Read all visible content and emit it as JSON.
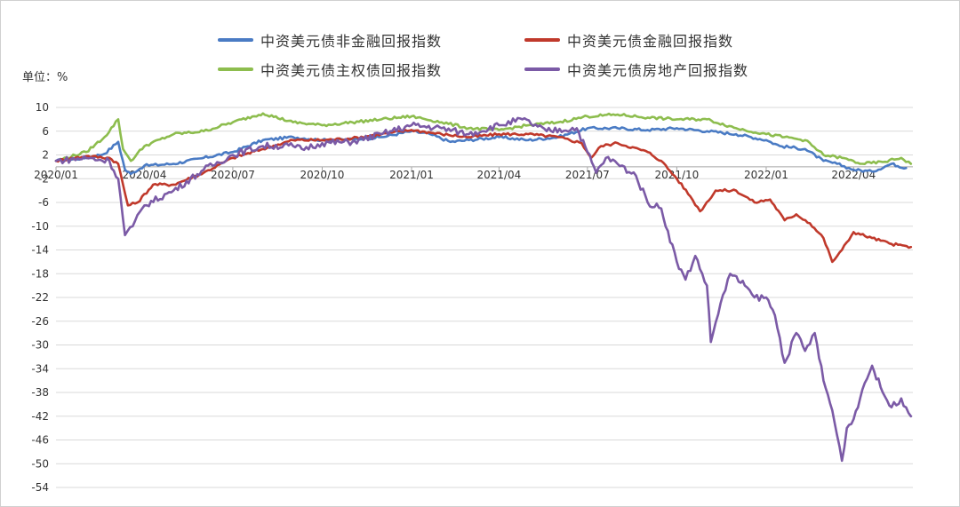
{
  "unit_label": "单位：%",
  "colors": {
    "non_financial": "#4a7bc4",
    "financial": "#c0392b",
    "sovereign": "#8dbd4e",
    "real_estate": "#7b5aa6",
    "grid": "#d9d9d9"
  },
  "chart_data": {
    "type": "line",
    "title": "",
    "xlabel": "",
    "ylabel": "单位：%",
    "ylim": [
      -54,
      10
    ],
    "yticks": [
      10,
      6,
      2,
      -2,
      -6,
      -10,
      -14,
      -18,
      -22,
      -26,
      -30,
      -34,
      -38,
      -42,
      -46,
      -50,
      -54
    ],
    "xlim": [
      "2020-01-01",
      "2022-06-01"
    ],
    "xticks": [
      "2020/01",
      "2020/04",
      "2020/07",
      "2020/10",
      "2021/01",
      "2021/04",
      "2021/07",
      "2021/10",
      "2022/01",
      "2022/04"
    ],
    "grid": true,
    "legend_position": "top",
    "series": [
      {
        "name": "中资美元债非金融回报指数",
        "color_key": "non_financial",
        "points": [
          [
            "2020-01-01",
            1.0
          ],
          [
            "2020-02-01",
            1.5
          ],
          [
            "2020-02-20",
            2.2
          ],
          [
            "2020-03-05",
            4.2
          ],
          [
            "2020-03-12",
            -0.5
          ],
          [
            "2020-03-18",
            -1.2
          ],
          [
            "2020-04-01",
            0.2
          ],
          [
            "2020-05-01",
            0.5
          ],
          [
            "2020-06-01",
            1.5
          ],
          [
            "2020-07-01",
            2.5
          ],
          [
            "2020-08-01",
            4.5
          ],
          [
            "2020-09-01",
            5.0
          ],
          [
            "2020-10-01",
            4.5
          ],
          [
            "2020-11-01",
            4.6
          ],
          [
            "2020-12-01",
            5.0
          ],
          [
            "2021-01-01",
            6.0
          ],
          [
            "2021-01-20",
            5.5
          ],
          [
            "2021-02-10",
            4.2
          ],
          [
            "2021-03-01",
            4.5
          ],
          [
            "2021-04-01",
            5.0
          ],
          [
            "2021-05-01",
            4.5
          ],
          [
            "2021-06-01",
            5.0
          ],
          [
            "2021-07-01",
            6.5
          ],
          [
            "2021-08-01",
            6.5
          ],
          [
            "2021-09-01",
            6.2
          ],
          [
            "2021-10-01",
            6.5
          ],
          [
            "2021-11-01",
            6.0
          ],
          [
            "2021-12-01",
            5.5
          ],
          [
            "2022-01-01",
            4.5
          ],
          [
            "2022-01-15",
            3.5
          ],
          [
            "2022-02-10",
            3.0
          ],
          [
            "2022-03-01",
            1.0
          ],
          [
            "2022-03-15",
            0.5
          ],
          [
            "2022-04-01",
            -0.5
          ],
          [
            "2022-04-20",
            -0.8
          ],
          [
            "2022-05-10",
            0.5
          ],
          [
            "2022-05-25",
            -0.2
          ]
        ]
      },
      {
        "name": "中资美元债金融回报指数",
        "color_key": "financial",
        "points": [
          [
            "2020-01-01",
            1.0
          ],
          [
            "2020-02-01",
            1.8
          ],
          [
            "2020-02-25",
            1.5
          ],
          [
            "2020-03-05",
            0.5
          ],
          [
            "2020-03-15",
            -6.5
          ],
          [
            "2020-03-25",
            -6.0
          ],
          [
            "2020-04-10",
            -3.0
          ],
          [
            "2020-05-01",
            -3.0
          ],
          [
            "2020-06-01",
            -1.0
          ],
          [
            "2020-07-01",
            1.5
          ],
          [
            "2020-08-01",
            3.0
          ],
          [
            "2020-09-01",
            4.5
          ],
          [
            "2020-10-01",
            4.5
          ],
          [
            "2020-11-01",
            4.8
          ],
          [
            "2020-12-01",
            5.5
          ],
          [
            "2021-01-01",
            6.2
          ],
          [
            "2021-02-01",
            5.5
          ],
          [
            "2021-03-01",
            5.0
          ],
          [
            "2021-04-01",
            5.5
          ],
          [
            "2021-05-01",
            5.5
          ],
          [
            "2021-06-01",
            5.0
          ],
          [
            "2021-06-25",
            4.0
          ],
          [
            "2021-07-05",
            1.5
          ],
          [
            "2021-07-15",
            3.5
          ],
          [
            "2021-08-01",
            4.0
          ],
          [
            "2021-09-01",
            2.5
          ],
          [
            "2021-09-15",
            1.0
          ],
          [
            "2021-10-01",
            -2.0
          ],
          [
            "2021-10-15",
            -5.0
          ],
          [
            "2021-10-25",
            -7.5
          ],
          [
            "2021-11-10",
            -4.0
          ],
          [
            "2021-12-01",
            -4.0
          ],
          [
            "2021-12-20",
            -6.0
          ],
          [
            "2022-01-05",
            -5.5
          ],
          [
            "2022-01-20",
            -9.0
          ],
          [
            "2022-02-01",
            -8.0
          ],
          [
            "2022-02-15",
            -9.5
          ],
          [
            "2022-03-01",
            -12.0
          ],
          [
            "2022-03-10",
            -16.0
          ],
          [
            "2022-03-20",
            -14.0
          ],
          [
            "2022-04-01",
            -11.0
          ],
          [
            "2022-04-20",
            -12.0
          ],
          [
            "2022-05-10",
            -13.0
          ],
          [
            "2022-05-30",
            -13.5
          ]
        ]
      },
      {
        "name": "中资美元债主权债回报指数",
        "color_key": "sovereign",
        "points": [
          [
            "2020-01-01",
            1.0
          ],
          [
            "2020-02-01",
            2.5
          ],
          [
            "2020-02-20",
            5.0
          ],
          [
            "2020-03-05",
            8.0
          ],
          [
            "2020-03-10",
            3.0
          ],
          [
            "2020-03-18",
            1.0
          ],
          [
            "2020-04-01",
            3.5
          ],
          [
            "2020-05-01",
            5.5
          ],
          [
            "2020-06-01",
            6.0
          ],
          [
            "2020-07-01",
            7.5
          ],
          [
            "2020-08-01",
            9.0
          ],
          [
            "2020-09-01",
            7.5
          ],
          [
            "2020-10-01",
            7.0
          ],
          [
            "2020-11-01",
            7.5
          ],
          [
            "2020-12-01",
            8.0
          ],
          [
            "2021-01-01",
            8.5
          ],
          [
            "2021-02-01",
            7.5
          ],
          [
            "2021-03-01",
            6.5
          ],
          [
            "2021-04-01",
            6.2
          ],
          [
            "2021-05-01",
            7.0
          ],
          [
            "2021-06-01",
            7.5
          ],
          [
            "2021-07-01",
            8.5
          ],
          [
            "2021-08-01",
            8.8
          ],
          [
            "2021-09-01",
            8.3
          ],
          [
            "2021-10-01",
            8.0
          ],
          [
            "2021-11-01",
            8.0
          ],
          [
            "2021-12-01",
            6.5
          ],
          [
            "2022-01-01",
            5.5
          ],
          [
            "2022-01-20",
            5.0
          ],
          [
            "2022-02-10",
            4.5
          ],
          [
            "2022-03-01",
            2.0
          ],
          [
            "2022-03-20",
            1.5
          ],
          [
            "2022-04-10",
            0.5
          ],
          [
            "2022-05-01",
            0.8
          ],
          [
            "2022-05-20",
            1.5
          ],
          [
            "2022-05-30",
            0.5
          ]
        ]
      },
      {
        "name": "中资美元债房地产回报指数",
        "color_key": "real_estate",
        "points": [
          [
            "2020-01-01",
            1.0
          ],
          [
            "2020-02-01",
            1.5
          ],
          [
            "2020-02-25",
            1.0
          ],
          [
            "2020-03-05",
            -2.0
          ],
          [
            "2020-03-12",
            -11.5
          ],
          [
            "2020-03-20",
            -10.0
          ],
          [
            "2020-04-01",
            -6.5
          ],
          [
            "2020-05-01",
            -4.0
          ],
          [
            "2020-06-01",
            -0.5
          ],
          [
            "2020-07-01",
            2.0
          ],
          [
            "2020-08-01",
            3.5
          ],
          [
            "2020-09-01",
            3.5
          ],
          [
            "2020-09-10",
            3.0
          ],
          [
            "2020-10-01",
            4.0
          ],
          [
            "2020-11-01",
            4.2
          ],
          [
            "2020-12-01",
            5.5
          ],
          [
            "2021-01-01",
            7.0
          ],
          [
            "2021-02-01",
            6.5
          ],
          [
            "2021-03-01",
            5.5
          ],
          [
            "2021-04-01",
            7.0
          ],
          [
            "2021-04-25",
            8.0
          ],
          [
            "2021-05-20",
            6.0
          ],
          [
            "2021-06-20",
            6.5
          ],
          [
            "2021-07-01",
            2.5
          ],
          [
            "2021-07-10",
            -1.0
          ],
          [
            "2021-07-20",
            1.5
          ],
          [
            "2021-08-01",
            0.5
          ],
          [
            "2021-08-20",
            -1.5
          ],
          [
            "2021-09-01",
            -6.0
          ],
          [
            "2021-09-15",
            -7.0
          ],
          [
            "2021-10-01",
            -16.0
          ],
          [
            "2021-10-10",
            -19.0
          ],
          [
            "2021-10-20",
            -15.0
          ],
          [
            "2021-11-01",
            -20.0
          ],
          [
            "2021-11-05",
            -29.5
          ],
          [
            "2021-11-15",
            -23.0
          ],
          [
            "2021-11-25",
            -18.0
          ],
          [
            "2021-12-10",
            -20.0
          ],
          [
            "2021-12-20",
            -22.0
          ],
          [
            "2022-01-01",
            -22.0
          ],
          [
            "2022-01-10",
            -25.0
          ],
          [
            "2022-01-20",
            -33.0
          ],
          [
            "2022-02-01",
            -28.0
          ],
          [
            "2022-02-10",
            -31.0
          ],
          [
            "2022-02-20",
            -28.0
          ],
          [
            "2022-03-01",
            -36.0
          ],
          [
            "2022-03-10",
            -41.0
          ],
          [
            "2022-03-20",
            -49.5
          ],
          [
            "2022-03-25",
            -44.0
          ],
          [
            "2022-04-01",
            -42.5
          ],
          [
            "2022-04-10",
            -37.5
          ],
          [
            "2022-04-20",
            -33.5
          ],
          [
            "2022-05-01",
            -38.0
          ],
          [
            "2022-05-10",
            -40.5
          ],
          [
            "2022-05-20",
            -39.0
          ],
          [
            "2022-05-30",
            -42.0
          ]
        ]
      }
    ]
  }
}
